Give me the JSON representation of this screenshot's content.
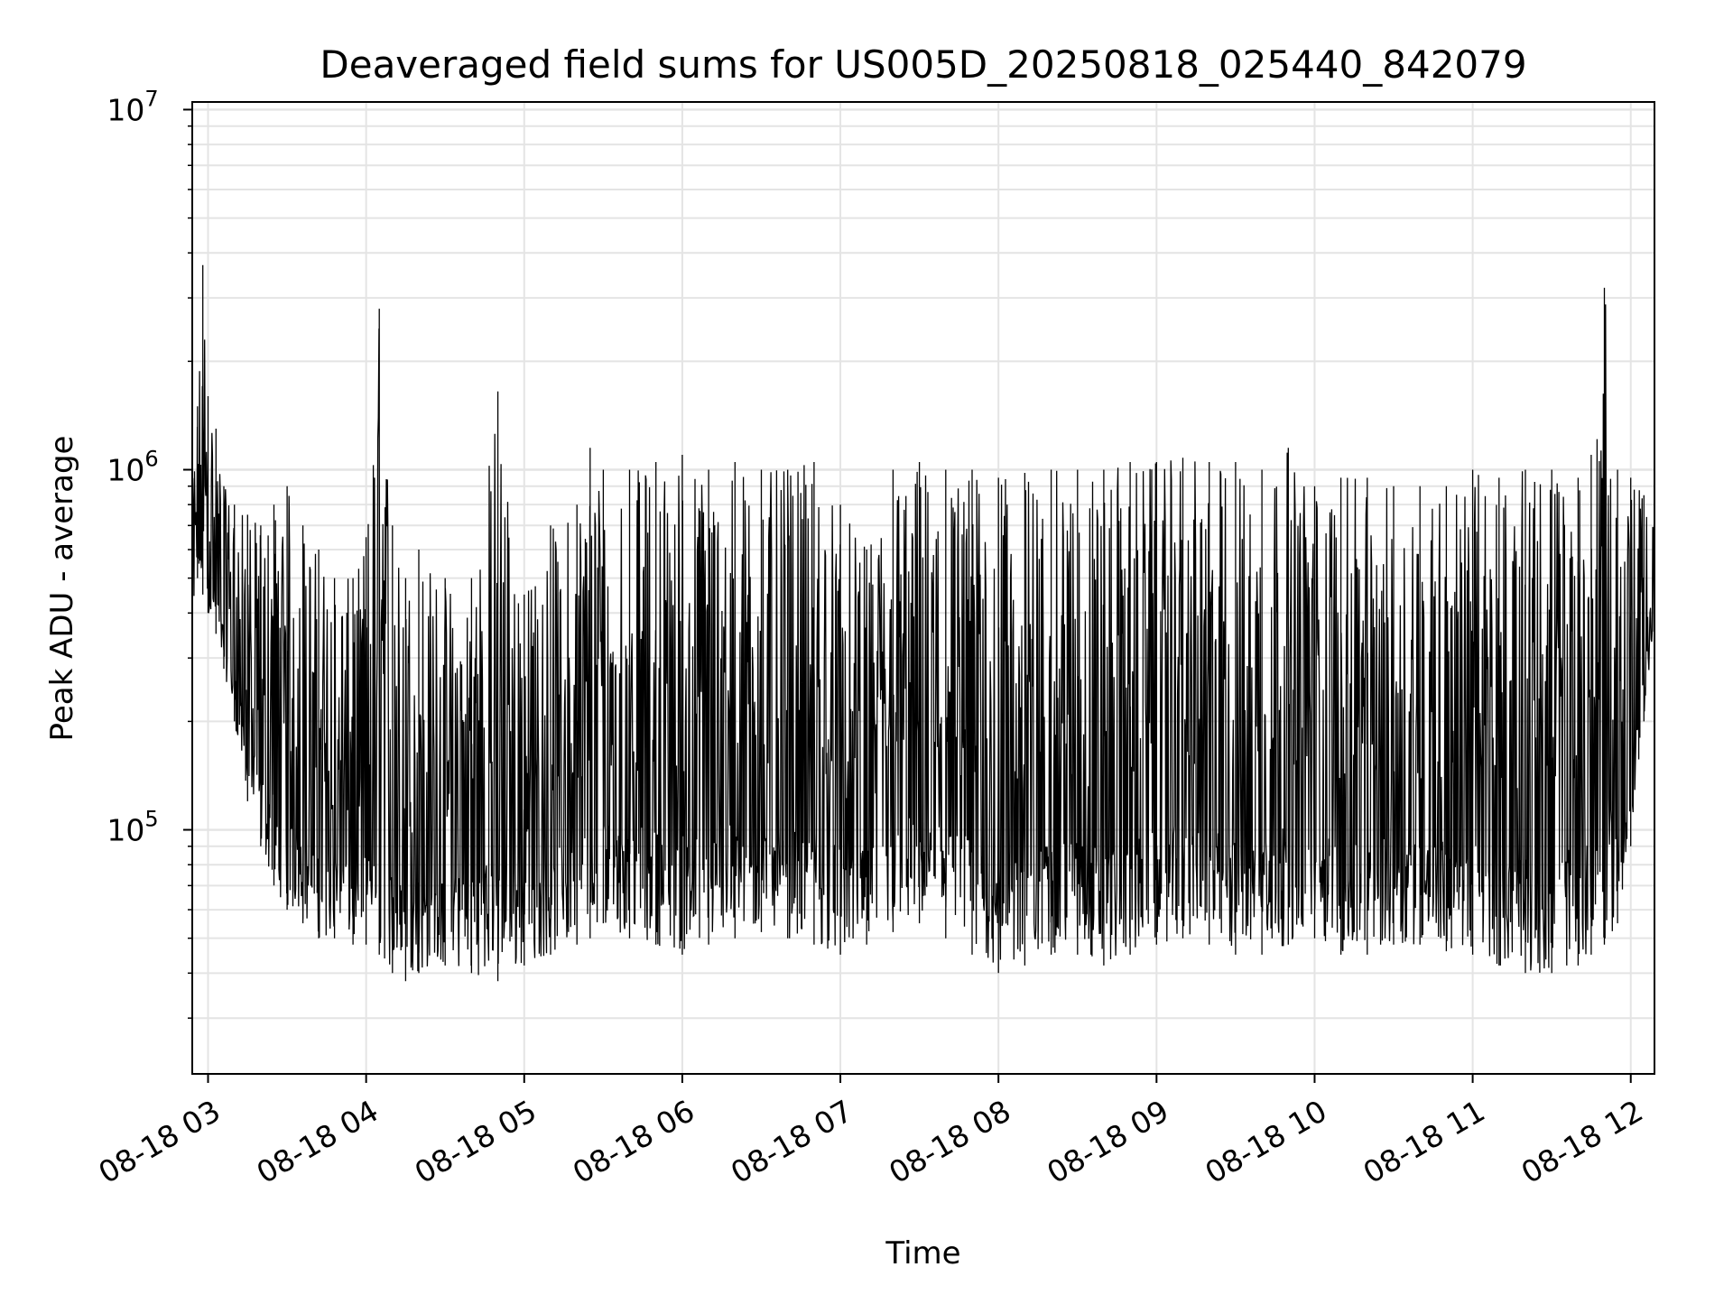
{
  "chart_data": {
    "type": "line",
    "title": "Deaveraged field sums for US005D_20250818_025440_842079",
    "xlabel": "Time",
    "ylabel": "Peak ADU - average",
    "yscale": "log",
    "ylim": [
      21000,
      10500000
    ],
    "xlim": [
      "08-18 02:54",
      "08-18 12:09"
    ],
    "x_ticks": [
      "08-18 03",
      "08-18 04",
      "08-18 05",
      "08-18 06",
      "08-18 07",
      "08-18 08",
      "08-18 09",
      "08-18 10",
      "08-18 11",
      "08-18 12"
    ],
    "y_ticks": [
      {
        "base": "10",
        "exp": "5",
        "value": 100000
      },
      {
        "base": "10",
        "exp": "6",
        "value": 1000000
      },
      {
        "base": "10",
        "exp": "7",
        "value": 10000000
      }
    ],
    "grid": true,
    "line_color": "#000000",
    "series": [
      {
        "x": [
          "08-18 02:54",
          "08-18 02:56",
          "08-18 02:58",
          "08-18 03:00",
          "08-18 03:03",
          "08-18 03:06",
          "08-18 03:10",
          "08-18 03:15",
          "08-18 03:20",
          "08-18 03:25",
          "08-18 03:30",
          "08-18 03:36",
          "08-18 03:42",
          "08-18 03:48",
          "08-18 03:55",
          "08-18 04:00",
          "08-18 04:05",
          "08-18 04:10",
          "08-18 04:15",
          "08-18 04:20",
          "08-18 04:30",
          "08-18 04:40",
          "08-18 04:50",
          "08-18 05:00",
          "08-18 05:10",
          "08-18 05:20",
          "08-18 05:25",
          "08-18 05:30",
          "08-18 05:40",
          "08-18 05:50",
          "08-18 06:00",
          "08-18 06:10",
          "08-18 06:20",
          "08-18 06:30",
          "08-18 06:40",
          "08-18 06:50",
          "08-18 07:00",
          "08-18 07:10",
          "08-18 07:20",
          "08-18 07:30",
          "08-18 07:40",
          "08-18 07:50",
          "08-18 08:00",
          "08-18 08:10",
          "08-18 08:20",
          "08-18 08:30",
          "08-18 08:40",
          "08-18 08:50",
          "08-18 09:00",
          "08-18 09:10",
          "08-18 09:20",
          "08-18 09:30",
          "08-18 09:40",
          "08-18 09:50",
          "08-18 10:00",
          "08-18 10:10",
          "08-18 10:20",
          "08-18 10:30",
          "08-18 10:40",
          "08-18 10:50",
          "08-18 11:00",
          "08-18 11:10",
          "08-18 11:20",
          "08-18 11:30",
          "08-18 11:40",
          "08-18 11:45",
          "08-18 11:50",
          "08-18 11:55",
          "08-18 12:00",
          "08-18 12:05",
          "08-18 12:09"
        ],
        "y_low": [
          300000,
          500000,
          450000,
          400000,
          350000,
          280000,
          200000,
          120000,
          90000,
          70000,
          60000,
          55000,
          50000,
          50000,
          48000,
          48000,
          45000,
          40000,
          38000,
          40000,
          42000,
          40000,
          38000,
          42000,
          45000,
          48000,
          50000,
          55000,
          50000,
          48000,
          45000,
          48000,
          50000,
          52000,
          50000,
          48000,
          45000,
          48000,
          52000,
          55000,
          50000,
          45000,
          40000,
          42000,
          45000,
          45000,
          42000,
          45000,
          48000,
          50000,
          48000,
          45000,
          45000,
          48000,
          50000,
          45000,
          45000,
          48000,
          48000,
          46000,
          45000,
          42000,
          40000,
          40000,
          42000,
          45000,
          48000,
          55000,
          90000,
          200000,
          350000
        ],
        "y_high": [
          900000,
          1500000,
          3700000,
          1600000,
          1300000,
          900000,
          800000,
          750000,
          700000,
          800000,
          900000,
          700000,
          600000,
          500000,
          500000,
          650000,
          2800000,
          700000,
          500000,
          600000,
          500000,
          500000,
          1650000,
          450000,
          700000,
          800000,
          1150000,
          1000000,
          1000000,
          1050000,
          1100000,
          1000000,
          1050000,
          1000000,
          1000000,
          1050000,
          800000,
          600000,
          1000000,
          1050000,
          1000000,
          1000000,
          950000,
          980000,
          1000000,
          1000000,
          1000000,
          1050000,
          1050000,
          1080000,
          1050000,
          1050000,
          1000000,
          1150000,
          900000,
          950000,
          950000,
          900000,
          900000,
          900000,
          1000000,
          950000,
          1000000,
          1000000,
          950000,
          1100000,
          3200000,
          1000000,
          950000,
          850000,
          700000
        ]
      }
    ]
  }
}
